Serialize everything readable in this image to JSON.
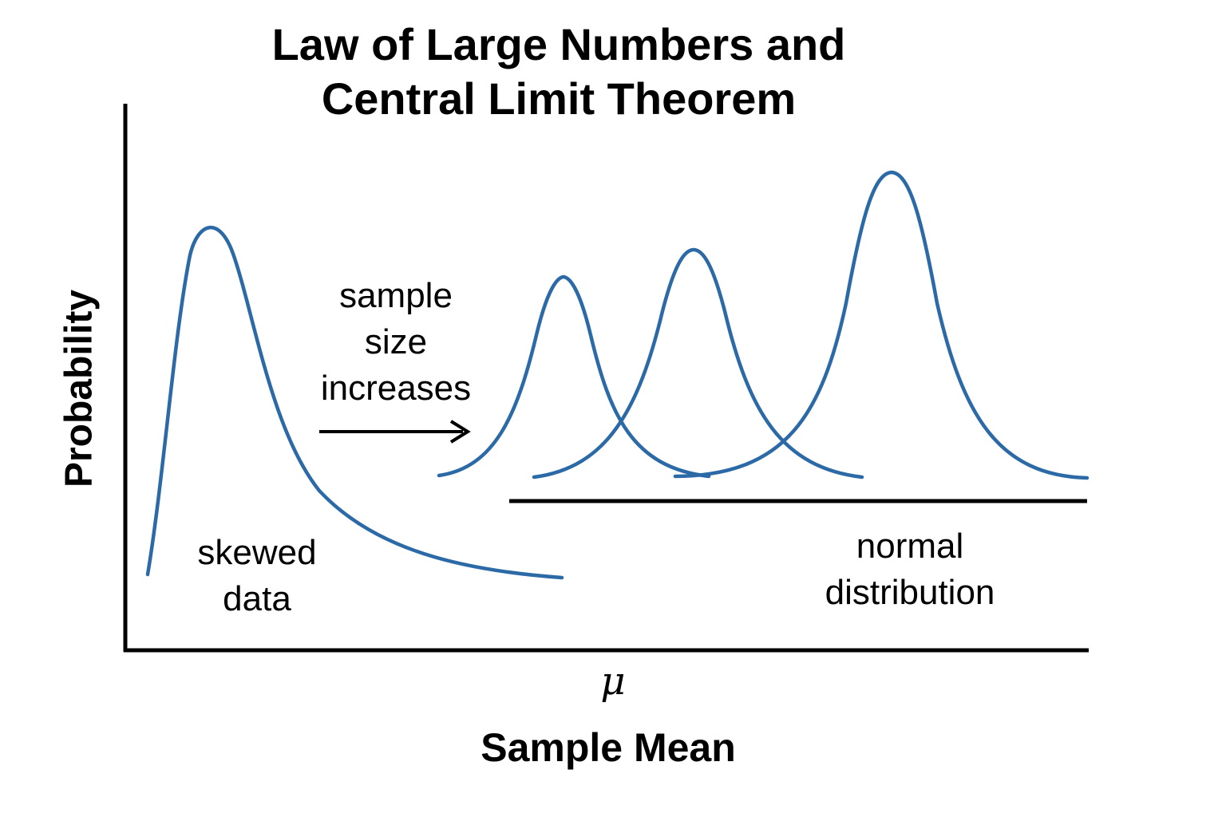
{
  "title": [
    "Law of Large Numbers and",
    "Central Limit Theorem"
  ],
  "ylabel": "Probability",
  "xlabel": "Sample Mean",
  "mean_symbol": "μ",
  "annotations": {
    "skewed": [
      "skewed",
      "data"
    ],
    "sample_size": [
      "sample",
      "size",
      "increases"
    ],
    "normal": [
      "normal",
      "distribution"
    ]
  },
  "colors": {
    "curve": "#2b6aa6",
    "ink": "#000000",
    "background": "#ffffff"
  },
  "icons": [
    "right-arrow"
  ]
}
